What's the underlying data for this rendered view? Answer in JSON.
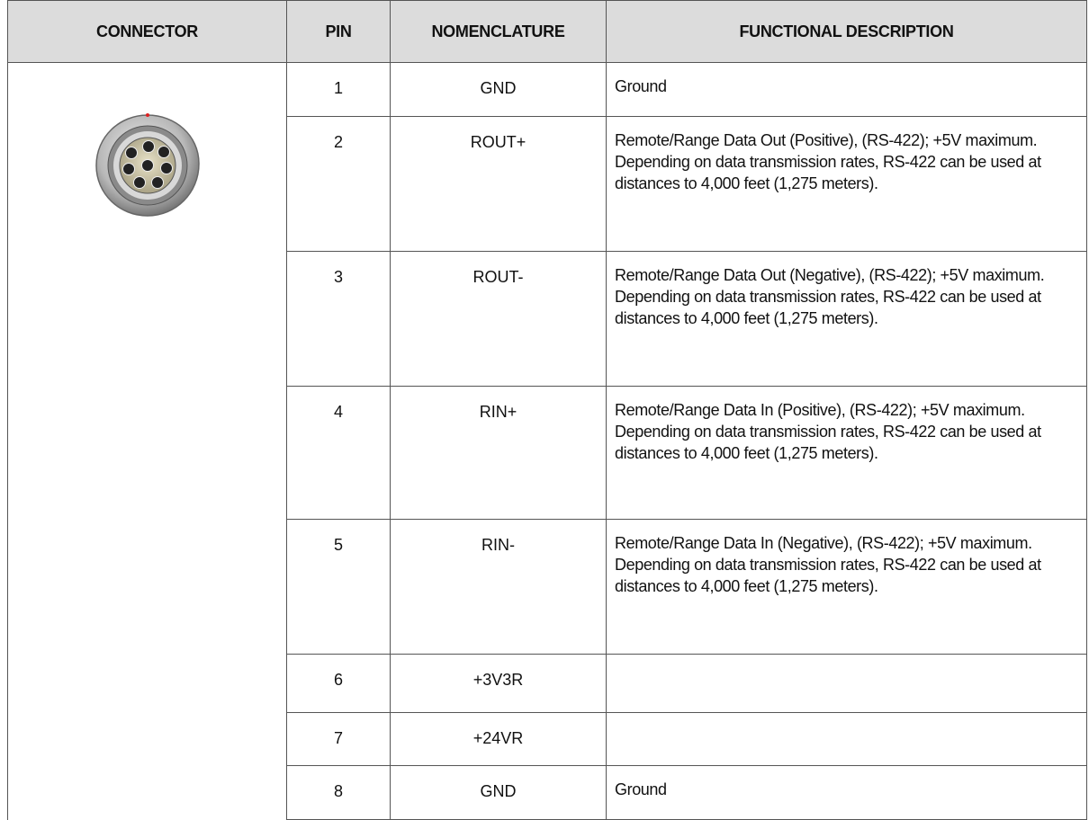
{
  "table": {
    "header": [
      "CONNECTOR",
      "PIN",
      "NOMENCLATURE",
      "FUNCTIONAL DESCRIPTION"
    ],
    "rows": [
      {
        "pin": 1,
        "nomenclature": "GND",
        "description": "Ground"
      },
      {
        "pin": 2,
        "nomenclature": "ROUT+",
        "description": "Remote/Range Data Out (Positive), (RS-422); +5V maximum. Depending on data transmission rates, RS-422 can be used at distances to 4,000 feet (1,275 meters)."
      },
      {
        "pin": 3,
        "nomenclature": "ROUT-",
        "description": "Remote/Range Data Out (Negative), (RS-422); +5V maximum. Depending on data transmission rates, RS-422 can be used at distances to 4,000 feet (1,275 meters)."
      },
      {
        "pin": 4,
        "nomenclature": "RIN+",
        "description": "Remote/Range Data In (Positive), (RS-422); +5V maximum. Depending on data transmission rates, RS-422 can be used at distances to 4,000 feet (1,275 meters)."
      },
      {
        "pin": 5,
        "nomenclature": "RIN-",
        "description": "Remote/Range Data In (Negative), (RS-422); +5V maximum. Depending on data transmission rates, RS-422 can be used at distances to 4,000 feet (1,275 meters)."
      },
      {
        "pin": 6,
        "nomenclature": "+3V3R"
      },
      {
        "pin": 7,
        "nomenclature": "+24VR"
      },
      {
        "pin": 8,
        "nomenclature": "GND",
        "description": "Ground"
      }
    ]
  }
}
